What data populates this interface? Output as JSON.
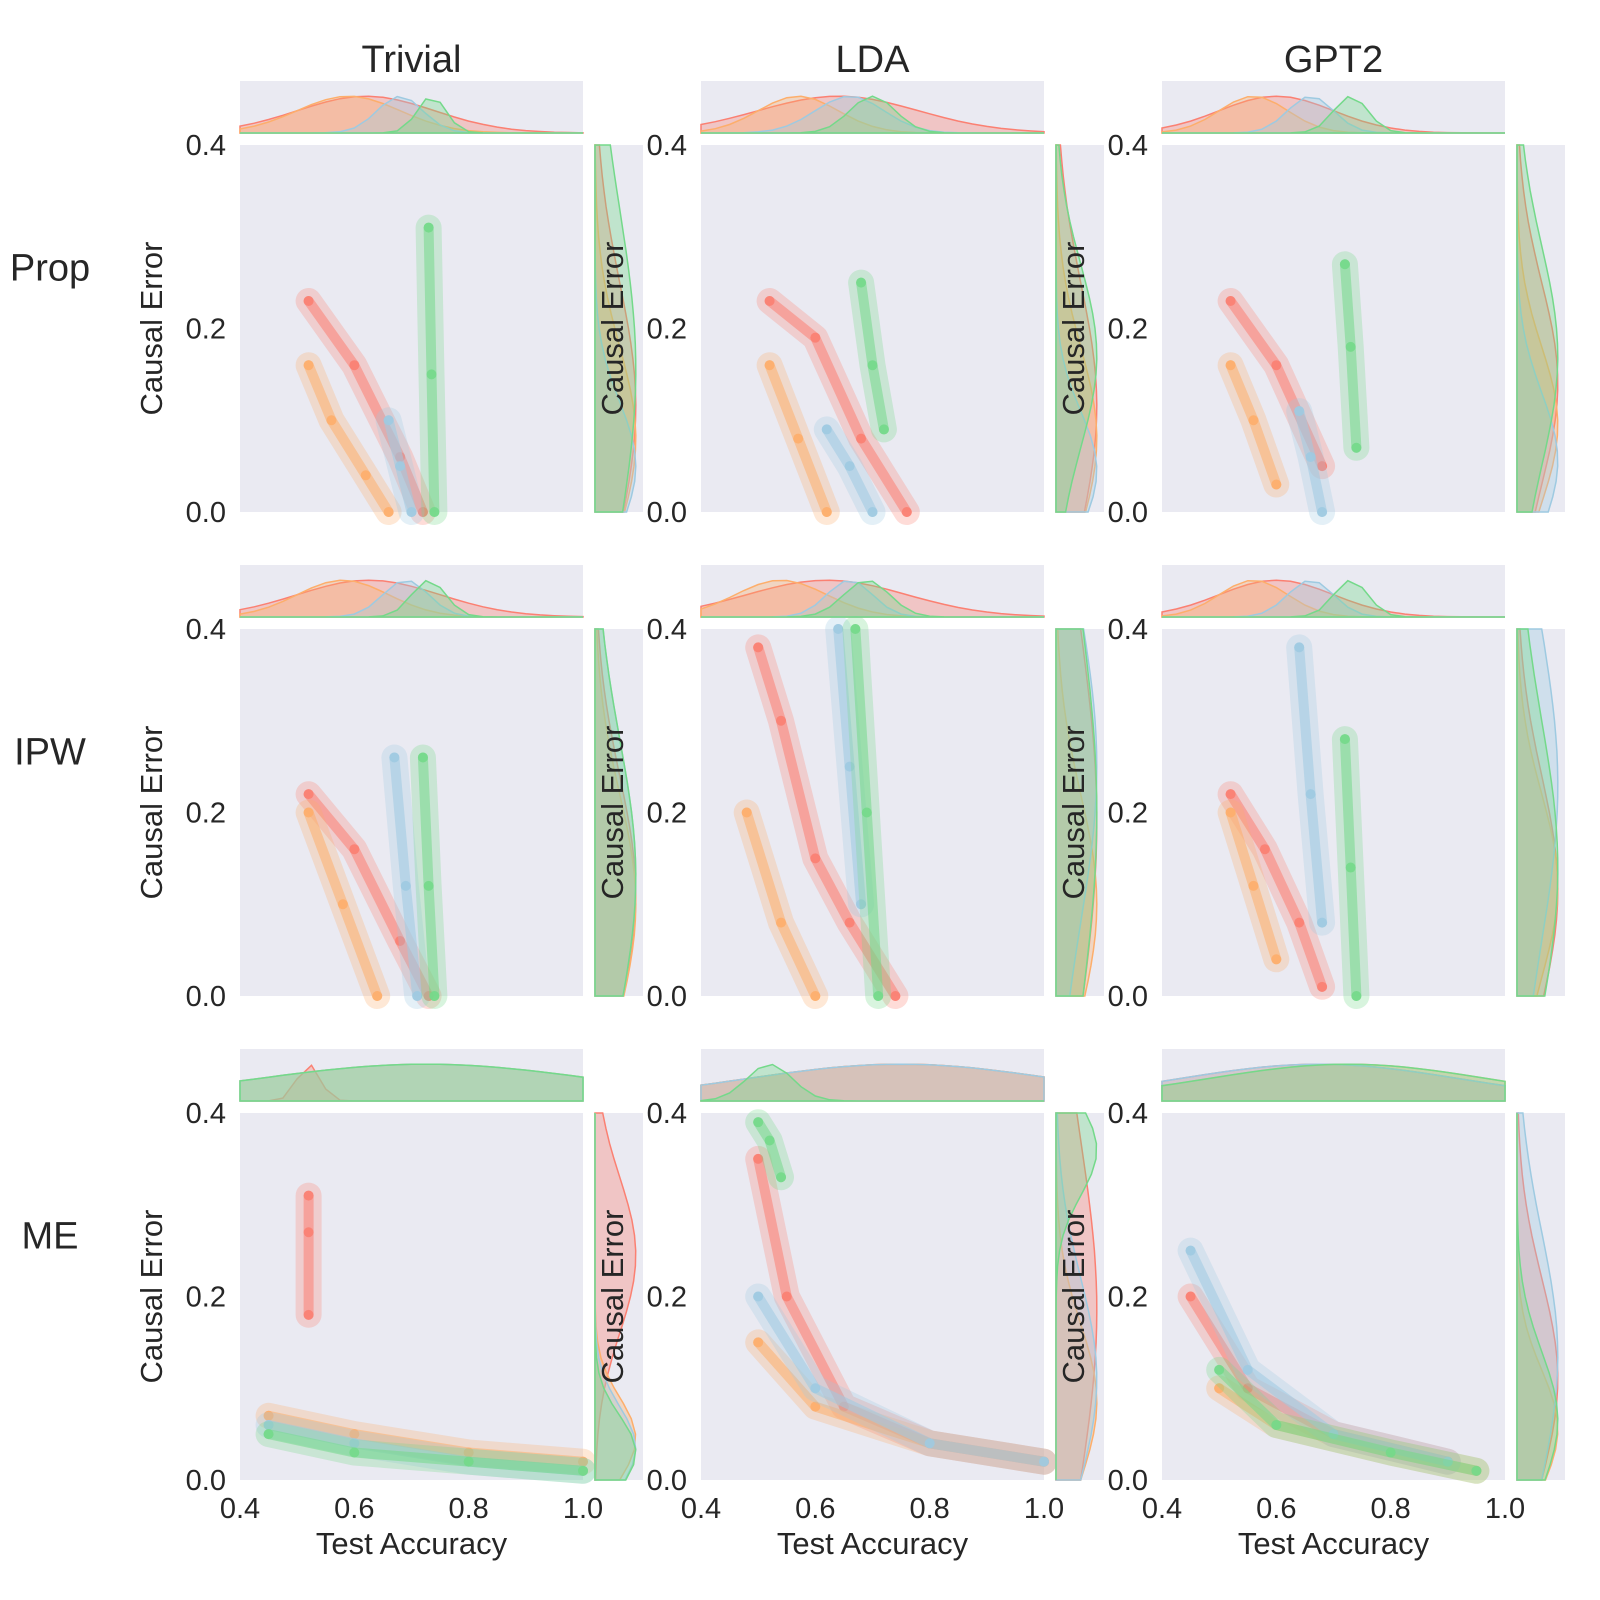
{
  "chart_data": {
    "type": "scatter",
    "layout": "3x3 grid of joint plots (scatter + kde contours with marginal densities)",
    "columns": [
      "Trivial",
      "LDA",
      "GPT2"
    ],
    "rows": [
      "Prop",
      "IPW",
      "ME"
    ],
    "xlabel": "Test Accuracy",
    "ylabel": "Causal Error",
    "xlim": [
      0.4,
      1.0
    ],
    "ylim": [
      0.0,
      0.4
    ],
    "xticks": [
      "0.4",
      "0.6",
      "0.8",
      "1.0"
    ],
    "yticks": [
      "0.0",
      "0.2",
      "0.4"
    ],
    "grid": false,
    "background": "#eaeaf2",
    "colors": {
      "orange": "#fdae6b",
      "red": "#fb8072",
      "blue": "#9ecae1",
      "green": "#74d98a",
      "gray": "#bdbdb5"
    },
    "panels": [
      {
        "row": "Prop",
        "col": "Trivial",
        "series": [
          {
            "color": "red",
            "x": [
              0.52,
              0.6,
              0.68,
              0.72
            ],
            "y": [
              0.23,
              0.16,
              0.06,
              0.0
            ]
          },
          {
            "color": "orange",
            "x": [
              0.52,
              0.56,
              0.62,
              0.66
            ],
            "y": [
              0.16,
              0.1,
              0.04,
              0.0
            ]
          },
          {
            "color": "blue",
            "x": [
              0.66,
              0.68,
              0.7
            ],
            "y": [
              0.1,
              0.05,
              0.0
            ]
          },
          {
            "color": "green",
            "x": [
              0.73,
              0.735,
              0.74
            ],
            "y": [
              0.31,
              0.15,
              0.0
            ]
          }
        ]
      },
      {
        "row": "Prop",
        "col": "LDA",
        "series": [
          {
            "color": "red",
            "x": [
              0.52,
              0.6,
              0.68,
              0.76
            ],
            "y": [
              0.23,
              0.19,
              0.08,
              0.0
            ]
          },
          {
            "color": "orange",
            "x": [
              0.52,
              0.57,
              0.62
            ],
            "y": [
              0.16,
              0.08,
              0.0
            ]
          },
          {
            "color": "blue",
            "x": [
              0.62,
              0.66,
              0.7
            ],
            "y": [
              0.09,
              0.05,
              0.0
            ]
          },
          {
            "color": "green",
            "x": [
              0.68,
              0.7,
              0.72
            ],
            "y": [
              0.25,
              0.16,
              0.09
            ]
          }
        ]
      },
      {
        "row": "Prop",
        "col": "GPT2",
        "series": [
          {
            "color": "red",
            "x": [
              0.52,
              0.6,
              0.68
            ],
            "y": [
              0.23,
              0.16,
              0.05
            ]
          },
          {
            "color": "orange",
            "x": [
              0.52,
              0.56,
              0.6
            ],
            "y": [
              0.16,
              0.1,
              0.03
            ]
          },
          {
            "color": "blue",
            "x": [
              0.64,
              0.66,
              0.68
            ],
            "y": [
              0.11,
              0.06,
              0.0
            ]
          },
          {
            "color": "green",
            "x": [
              0.72,
              0.73,
              0.74
            ],
            "y": [
              0.27,
              0.18,
              0.07
            ]
          }
        ]
      },
      {
        "row": "IPW",
        "col": "Trivial",
        "series": [
          {
            "color": "red",
            "x": [
              0.52,
              0.6,
              0.68,
              0.73
            ],
            "y": [
              0.22,
              0.16,
              0.06,
              0.0
            ]
          },
          {
            "color": "orange",
            "x": [
              0.52,
              0.58,
              0.64
            ],
            "y": [
              0.2,
              0.1,
              0.0
            ]
          },
          {
            "color": "blue",
            "x": [
              0.67,
              0.69,
              0.71
            ],
            "y": [
              0.26,
              0.12,
              0.0
            ]
          },
          {
            "color": "green",
            "x": [
              0.72,
              0.73,
              0.74
            ],
            "y": [
              0.26,
              0.12,
              0.0
            ]
          }
        ]
      },
      {
        "row": "IPW",
        "col": "LDA",
        "series": [
          {
            "color": "red",
            "x": [
              0.5,
              0.54,
              0.6,
              0.66,
              0.74
            ],
            "y": [
              0.38,
              0.3,
              0.15,
              0.08,
              0.0
            ]
          },
          {
            "color": "orange",
            "x": [
              0.48,
              0.54,
              0.6
            ],
            "y": [
              0.2,
              0.08,
              0.0
            ]
          },
          {
            "color": "blue",
            "x": [
              0.64,
              0.66,
              0.68
            ],
            "y": [
              0.4,
              0.25,
              0.1
            ]
          },
          {
            "color": "green",
            "x": [
              0.67,
              0.69,
              0.71
            ],
            "y": [
              0.4,
              0.2,
              0.0
            ]
          }
        ]
      },
      {
        "row": "IPW",
        "col": "GPT2",
        "series": [
          {
            "color": "red",
            "x": [
              0.52,
              0.58,
              0.64,
              0.68
            ],
            "y": [
              0.22,
              0.16,
              0.08,
              0.01
            ]
          },
          {
            "color": "orange",
            "x": [
              0.52,
              0.56,
              0.6
            ],
            "y": [
              0.2,
              0.12,
              0.04
            ]
          },
          {
            "color": "blue",
            "x": [
              0.64,
              0.66,
              0.68
            ],
            "y": [
              0.38,
              0.22,
              0.08
            ]
          },
          {
            "color": "green",
            "x": [
              0.72,
              0.73,
              0.74
            ],
            "y": [
              0.28,
              0.14,
              0.0
            ]
          }
        ]
      },
      {
        "row": "ME",
        "col": "Trivial",
        "series": [
          {
            "color": "red",
            "x": [
              0.52,
              0.52,
              0.52
            ],
            "y": [
              0.31,
              0.27,
              0.18
            ]
          },
          {
            "color": "orange",
            "x": [
              0.45,
              0.6,
              0.8,
              1.0
            ],
            "y": [
              0.07,
              0.05,
              0.03,
              0.02
            ]
          },
          {
            "color": "blue",
            "x": [
              0.45,
              0.6,
              0.8,
              1.0
            ],
            "y": [
              0.06,
              0.04,
              0.02,
              0.01
            ]
          },
          {
            "color": "green",
            "x": [
              0.45,
              0.6,
              0.8,
              1.0
            ],
            "y": [
              0.05,
              0.03,
              0.02,
              0.01
            ]
          }
        ]
      },
      {
        "row": "ME",
        "col": "LDA",
        "series": [
          {
            "color": "red",
            "x": [
              0.5,
              0.55,
              0.65,
              0.8,
              1.0
            ],
            "y": [
              0.35,
              0.2,
              0.08,
              0.04,
              0.02
            ]
          },
          {
            "color": "orange",
            "x": [
              0.5,
              0.6,
              0.8,
              1.0
            ],
            "y": [
              0.15,
              0.08,
              0.04,
              0.02
            ]
          },
          {
            "color": "blue",
            "x": [
              0.5,
              0.6,
              0.8,
              1.0
            ],
            "y": [
              0.2,
              0.1,
              0.04,
              0.02
            ]
          },
          {
            "color": "green",
            "x": [
              0.5,
              0.52,
              0.54
            ],
            "y": [
              0.39,
              0.37,
              0.33
            ]
          }
        ]
      },
      {
        "row": "ME",
        "col": "GPT2",
        "series": [
          {
            "color": "red",
            "x": [
              0.45,
              0.55,
              0.7,
              0.9
            ],
            "y": [
              0.2,
              0.1,
              0.05,
              0.02
            ]
          },
          {
            "color": "orange",
            "x": [
              0.5,
              0.6,
              0.8,
              0.95
            ],
            "y": [
              0.1,
              0.06,
              0.03,
              0.01
            ]
          },
          {
            "color": "blue",
            "x": [
              0.45,
              0.55,
              0.7,
              0.9
            ],
            "y": [
              0.25,
              0.12,
              0.05,
              0.02
            ]
          },
          {
            "color": "green",
            "x": [
              0.5,
              0.6,
              0.8,
              0.95
            ],
            "y": [
              0.12,
              0.06,
              0.03,
              0.01
            ]
          }
        ]
      }
    ]
  }
}
